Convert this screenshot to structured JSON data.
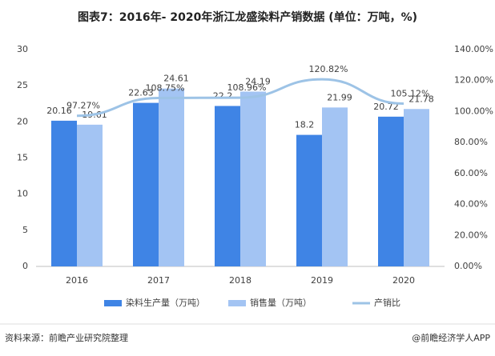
{
  "chart_data": {
    "type": "bar-line",
    "title": "图表7：2016年- 2020年浙江龙盛染料产销数据 (单位：万吨，%)",
    "source": "资料来源：前瞻产业研究院整理",
    "credit": "@前瞻经济学人APP",
    "categories": [
      "2016",
      "2017",
      "2018",
      "2019",
      "2020"
    ],
    "series": [
      {
        "name": "染料生产量（万吨）",
        "color": "#3f84e5",
        "kind": "bar",
        "values": [
          20.16,
          22.63,
          22.2,
          18.2,
          20.72
        ]
      },
      {
        "name": "销售量（万吨）",
        "color": "#a3c4f3",
        "kind": "bar",
        "values": [
          19.61,
          24.61,
          24.19,
          21.99,
          21.78
        ]
      },
      {
        "name": "产销比",
        "color": "#9dc3e6",
        "kind": "line",
        "axis": "y2",
        "values": [
          97.27,
          108.75,
          108.96,
          120.82,
          105.12
        ],
        "value_labels": [
          "97.27%",
          "108.75%",
          "108.96%",
          "120.82%",
          "105.12%"
        ]
      }
    ],
    "ylim": [
      0,
      30
    ],
    "yticks": [
      0,
      5,
      10,
      15,
      20,
      25,
      30
    ],
    "y2lim": [
      0,
      140
    ],
    "y2ticks": [
      {
        "value": 0,
        "label": "0.00%"
      },
      {
        "value": 20,
        "label": "20.00%"
      },
      {
        "value": 40,
        "label": "40.00%"
      },
      {
        "value": 60,
        "label": "60.00%"
      },
      {
        "value": 80,
        "label": "80.00%"
      },
      {
        "value": 100,
        "label": "100.00%"
      },
      {
        "value": 120,
        "label": "120.00%"
      },
      {
        "value": 140,
        "label": "140.00%"
      }
    ],
    "grid": false
  }
}
